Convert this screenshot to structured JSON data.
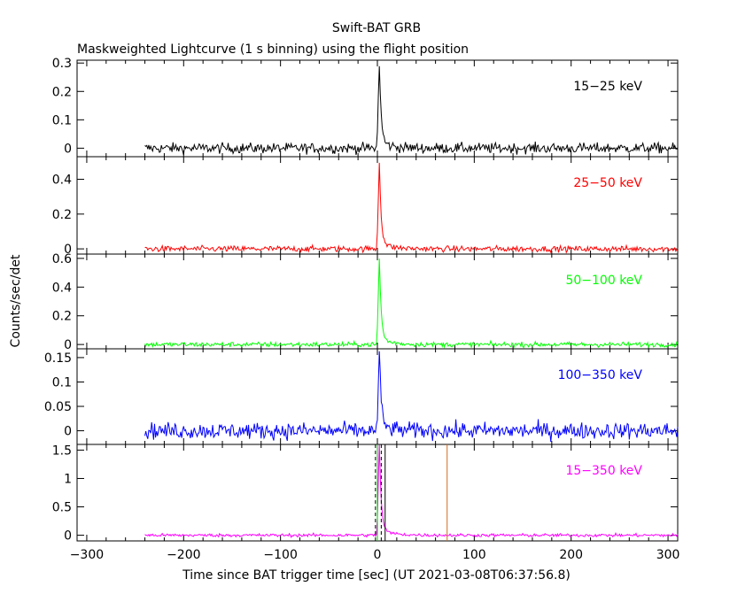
{
  "chart_data": {
    "type": "line",
    "title": "Swift-BAT GRB",
    "subtitle": "Maskweighted Lightcurve (1 s binning) using the flight position",
    "xlabel": "Time since BAT trigger time [sec] (UT 2021-03-08T06:37:56.8)",
    "ylabel": "Counts/sec/det",
    "xlim": [
      -310,
      310
    ],
    "xticks": [
      -300,
      -200,
      -100,
      0,
      100,
      200,
      300
    ],
    "data_start": -240,
    "data_end": 310,
    "peak_time": 2,
    "grid": false,
    "panels": [
      {
        "name": "15−25 keV",
        "color": "#000000",
        "ylim": [
          -0.03,
          0.31
        ],
        "yticks": [
          0,
          0.1,
          0.2,
          0.3
        ],
        "ytick_labels": [
          "0",
          "0.1",
          "0.2",
          "0.3"
        ],
        "peak": 0.3,
        "noise": 0.013
      },
      {
        "name": "25−50 keV",
        "color": "#ff0000",
        "ylim": [
          -0.03,
          0.53
        ],
        "yticks": [
          0,
          0.2,
          0.4
        ],
        "ytick_labels": [
          "0",
          "0.2",
          "0.4"
        ],
        "peak": 0.5,
        "noise": 0.012
      },
      {
        "name": "50−100 keV",
        "color": "#00ff00",
        "ylim": [
          -0.03,
          0.63
        ],
        "yticks": [
          0,
          0.2,
          0.4,
          0.6
        ],
        "ytick_labels": [
          "0",
          "0.2",
          "0.4",
          "0.6"
        ],
        "peak": 0.6,
        "noise": 0.012
      },
      {
        "name": "100−350 keV",
        "color": "#0000ff",
        "ylim": [
          -0.028,
          0.168
        ],
        "yticks": [
          0,
          0.05,
          0.1,
          0.15
        ],
        "ytick_labels": [
          "0",
          "0.05",
          "0.1",
          "0.15"
        ],
        "peak": 0.16,
        "noise": 0.012
      },
      {
        "name": "15−350 keV",
        "color": "#ff00ff",
        "ylim": [
          -0.1,
          1.6
        ],
        "yticks": [
          0,
          0.5,
          1,
          1.5
        ],
        "ytick_labels": [
          "0",
          "0.5",
          "1",
          "1.5"
        ],
        "peak": 1.6,
        "noise": 0.02,
        "markers": [
          {
            "x": -2,
            "color": "#000000",
            "style": "dashed"
          },
          {
            "x": 0,
            "color": "#00cc00",
            "style": "solid"
          },
          {
            "x": 4,
            "color": "#000000",
            "style": "dashed"
          },
          {
            "x": 8,
            "color": "#000000",
            "style": "solid"
          },
          {
            "x": 72,
            "color": "#d2691e",
            "style": "solid"
          }
        ]
      }
    ]
  }
}
